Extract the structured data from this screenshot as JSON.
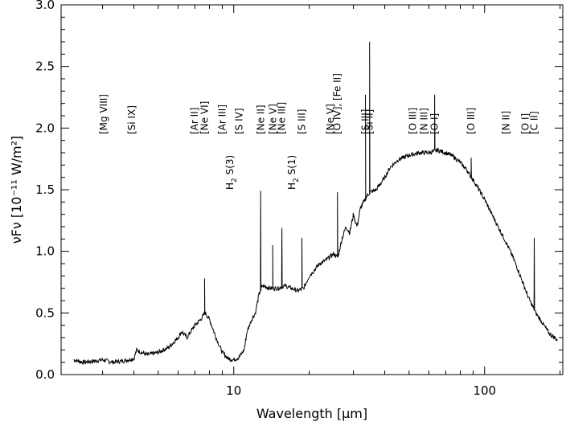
{
  "chart_data": {
    "type": "line",
    "xlabel": "Wavelength [μm]",
    "ylabel": "νFν [10⁻¹¹ W/m²]",
    "x_scale": "log",
    "xlim": [
      2.05,
      205
    ],
    "ylim": [
      0,
      3.0
    ],
    "x_ticks": [
      10,
      100
    ],
    "x_tick_labels": [
      "10",
      "100"
    ],
    "y_ticks": [
      0.0,
      0.5,
      1.0,
      1.5,
      2.0,
      2.5,
      3.0
    ],
    "y_tick_labels": [
      "0.0",
      "0.5",
      "1.0",
      "1.5",
      "2.0",
      "2.5",
      "3.0"
    ],
    "series": [
      {
        "x": [
          2.3,
          2.5,
          2.8,
          3.0,
          3.3,
          3.6,
          4.0,
          4.1,
          4.5,
          5.0,
          5.5,
          6.0,
          6.2,
          6.5,
          7.0,
          7.4,
          7.7,
          8.0,
          8.5,
          9.0,
          9.5,
          10.0,
          10.5,
          11.0,
          11.3,
          11.8,
          12.2,
          12.6,
          13.0,
          14.0,
          15.0,
          16.0,
          17.0,
          18.0,
          19.0,
          20.0,
          21.0,
          22.0,
          23.0,
          24.0,
          25.0,
          26.0,
          27.0,
          28.0,
          29.0,
          30.0,
          31.0,
          32.0,
          33.0,
          34.0,
          35.0,
          37.0,
          40.0,
          42.0,
          45.0,
          50.0,
          55.0,
          60.0,
          65.0,
          70.0,
          75.0,
          80.0,
          85.0,
          90.0,
          95.0,
          100.0,
          110.0,
          120.0,
          130.0,
          140.0,
          150.0,
          160.0,
          170.0,
          180.0,
          195.0
        ],
        "y": [
          0.12,
          0.1,
          0.11,
          0.12,
          0.1,
          0.11,
          0.13,
          0.2,
          0.16,
          0.18,
          0.22,
          0.3,
          0.35,
          0.3,
          0.4,
          0.45,
          0.5,
          0.45,
          0.3,
          0.18,
          0.13,
          0.12,
          0.14,
          0.2,
          0.35,
          0.45,
          0.5,
          0.65,
          0.72,
          0.7,
          0.7,
          0.72,
          0.7,
          0.68,
          0.7,
          0.8,
          0.85,
          0.9,
          0.92,
          0.95,
          0.98,
          0.95,
          1.1,
          1.2,
          1.15,
          1.3,
          1.2,
          1.35,
          1.4,
          1.45,
          1.48,
          1.5,
          1.6,
          1.68,
          1.74,
          1.78,
          1.8,
          1.8,
          1.82,
          1.8,
          1.77,
          1.72,
          1.66,
          1.58,
          1.5,
          1.42,
          1.25,
          1.1,
          0.95,
          0.78,
          0.62,
          0.5,
          0.42,
          0.34,
          0.28
        ]
      }
    ],
    "lines": [
      {
        "x": 7.65,
        "peak": 0.78,
        "label": ""
      },
      {
        "x": 12.8,
        "peak": 1.49,
        "label": ""
      },
      {
        "x": 14.3,
        "peak": 1.05,
        "label": ""
      },
      {
        "x": 15.55,
        "peak": 1.19,
        "label": ""
      },
      {
        "x": 18.7,
        "peak": 1.11,
        "label": ""
      },
      {
        "x": 25.9,
        "peak": 1.48,
        "label": ""
      },
      {
        "x": 33.5,
        "peak": 2.27,
        "label": ""
      },
      {
        "x": 34.8,
        "peak": 2.7,
        "label": ""
      },
      {
        "x": 63.2,
        "peak": 2.27,
        "label": ""
      },
      {
        "x": 88.4,
        "peak": 1.76,
        "label": ""
      },
      {
        "x": 157.7,
        "peak": 1.11,
        "label": ""
      }
    ],
    "line_labels": [
      {
        "text": "[Mg VIII]",
        "x": 3.03
      },
      {
        "text": "[Si IX]",
        "x": 3.92
      },
      {
        "text": "[Ar II]",
        "x": 6.99
      },
      {
        "text": "[Ne VI]",
        "x": 7.65
      },
      {
        "text": "[Ar III]",
        "x": 8.99
      },
      {
        "text": "[S IV]",
        "x": 10.51
      },
      {
        "text": "[Ne II]",
        "x": 12.81
      },
      {
        "text": "[Ne V]",
        "x": 14.32
      },
      {
        "text": "[Ne III]",
        "x": 15.55
      },
      {
        "text": "[S III]",
        "x": 18.71
      },
      {
        "text": "[Ne V]",
        "x": 24.32
      },
      {
        "text": "[O IV], [Fe II]",
        "x": 25.9
      },
      {
        "text": "[S III]",
        "x": 33.48
      },
      {
        "text": "[Si II]",
        "x": 34.81
      },
      {
        "text": "[O III]",
        "x": 51.81
      },
      {
        "text": "[N III]",
        "x": 57.32
      },
      {
        "text": "[O I]",
        "x": 63.18
      },
      {
        "text": "[O III]",
        "x": 88.36
      },
      {
        "text": "[N II]",
        "x": 121.9
      },
      {
        "text": "[O I]",
        "x": 145.5
      },
      {
        "text": "[C II]",
        "x": 157.7
      }
    ],
    "h2_labels": [
      {
        "base": "H",
        "sub": "2",
        "rest": " S(3)",
        "x": 9.66
      },
      {
        "base": "H",
        "sub": "2",
        "rest": " S(1)",
        "x": 17.03
      }
    ]
  }
}
